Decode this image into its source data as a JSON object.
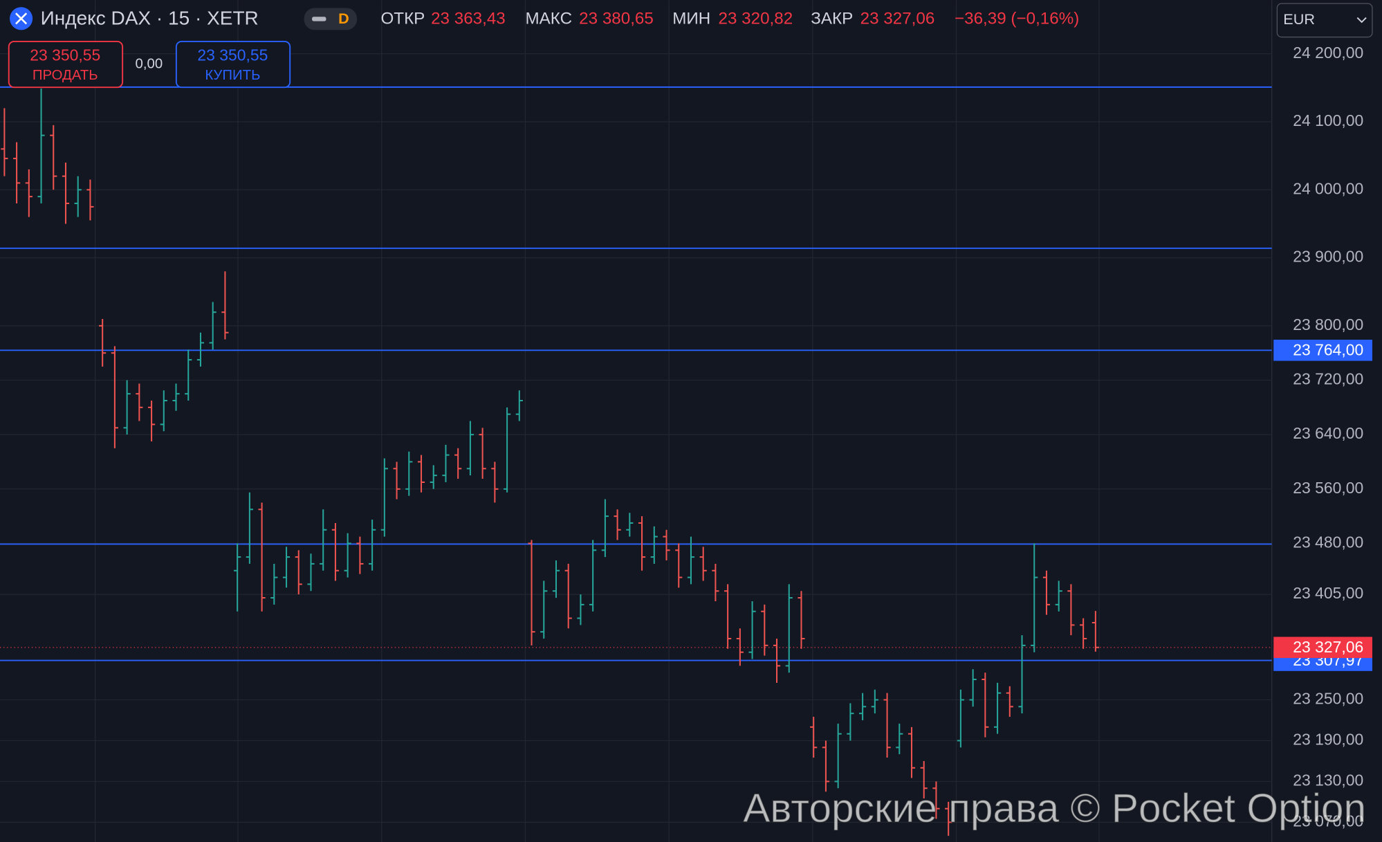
{
  "chart_data": {
    "type": "ohlc",
    "symbol": "Индекс DAX · 15 · XETR",
    "badge": "D",
    "stats": [
      {
        "name": "ОТКР",
        "value": "23 363,43"
      },
      {
        "name": "МАКС",
        "value": "23 380,65"
      },
      {
        "name": "МИН",
        "value": "23 320,82"
      },
      {
        "name": "ЗАКР",
        "value": "23 327,06"
      }
    ],
    "change": "−36,39 (−0,16%)",
    "sell": {
      "price": "23 350,55",
      "label": "ПРОДАТЬ"
    },
    "spread": "0,00",
    "buy": {
      "price": "23 350,55",
      "label": "КУПИТЬ"
    },
    "currency": "EUR",
    "watermark": "Авторские права © Pocket Option",
    "up_color": "#26a69a",
    "down_color": "#ef5350",
    "level_color": "#2962ff",
    "last_color": "#f23645",
    "grid": true,
    "ylim": [
      23041,
      24279
    ],
    "yticks": [
      {
        "value": 24200,
        "label": "24 200,00"
      },
      {
        "value": 24100,
        "label": "24 100,00"
      },
      {
        "value": 24000,
        "label": "24 000,00"
      },
      {
        "value": 23900,
        "label": "23 900,00"
      },
      {
        "value": 23800,
        "label": "23 800,00"
      },
      {
        "value": 23720,
        "label": "23 720,00"
      },
      {
        "value": 23640,
        "label": "23 640,00"
      },
      {
        "value": 23560,
        "label": "23 560,00"
      },
      {
        "value": 23480,
        "label": "23 480,00"
      },
      {
        "value": 23405,
        "label": "23 405,00"
      },
      {
        "value": 23250,
        "label": "23 250,00"
      },
      {
        "value": 23190,
        "label": "23 190,00"
      },
      {
        "value": 23130,
        "label": "23 130,00"
      },
      {
        "value": 23070,
        "label": "23 070,00"
      }
    ],
    "levels": [
      {
        "value": 24151
      },
      {
        "value": 23914
      },
      {
        "value": 23764,
        "label": "23 764,00"
      },
      {
        "value": 23479
      },
      {
        "value": 23307.97,
        "label": "23 307,97"
      }
    ],
    "last_price": {
      "value": 23327.06,
      "label": "23 327,06"
    },
    "ohlc": [
      [
        24060,
        24120,
        24020,
        24046
      ],
      [
        24046,
        24070,
        23980,
        24010
      ],
      [
        24010,
        24030,
        23960,
        23990
      ],
      [
        23990,
        24149,
        23980,
        24080
      ],
      [
        24080,
        24095,
        24000,
        24020
      ],
      [
        24020,
        24040,
        23950,
        23980
      ],
      [
        23980,
        24020,
        23960,
        24000
      ],
      [
        24000,
        24015,
        23955,
        23975
      ],
      [
        23800,
        23810,
        23740,
        23760
      ],
      [
        23760,
        23770,
        23620,
        23650
      ],
      [
        23650,
        23720,
        23640,
        23700
      ],
      [
        23700,
        23715,
        23660,
        23680
      ],
      [
        23680,
        23690,
        23630,
        23655
      ],
      [
        23655,
        23705,
        23645,
        23690
      ],
      [
        23690,
        23715,
        23675,
        23700
      ],
      [
        23700,
        23765,
        23690,
        23750
      ],
      [
        23750,
        23790,
        23740,
        23775
      ],
      [
        23775,
        23835,
        23765,
        23820
      ],
      [
        23820,
        23880,
        23780,
        23790
      ],
      [
        23440,
        23480,
        23380,
        23460
      ],
      [
        23460,
        23555,
        23450,
        23530
      ],
      [
        23530,
        23540,
        23380,
        23400
      ],
      [
        23400,
        23450,
        23390,
        23430
      ],
      [
        23430,
        23475,
        23415,
        23460
      ],
      [
        23460,
        23470,
        23405,
        23420
      ],
      [
        23420,
        23465,
        23410,
        23450
      ],
      [
        23450,
        23530,
        23440,
        23500
      ],
      [
        23500,
        23510,
        23425,
        23440
      ],
      [
        23440,
        23495,
        23430,
        23480
      ],
      [
        23480,
        23490,
        23435,
        23450
      ],
      [
        23450,
        23515,
        23440,
        23500
      ],
      [
        23500,
        23605,
        23490,
        23590
      ],
      [
        23590,
        23600,
        23545,
        23560
      ],
      [
        23560,
        23615,
        23550,
        23600
      ],
      [
        23600,
        23610,
        23555,
        23570
      ],
      [
        23570,
        23595,
        23560,
        23580
      ],
      [
        23580,
        23625,
        23570,
        23610
      ],
      [
        23610,
        23620,
        23575,
        23590
      ],
      [
        23590,
        23660,
        23580,
        23640
      ],
      [
        23640,
        23650,
        23575,
        23590
      ],
      [
        23590,
        23600,
        23540,
        23560
      ],
      [
        23560,
        23680,
        23555,
        23670
      ],
      [
        23670,
        23705,
        23660,
        23690
      ],
      [
        23480,
        23485,
        23330,
        23350
      ],
      [
        23350,
        23425,
        23340,
        23410
      ],
      [
        23410,
        23455,
        23400,
        23440
      ],
      [
        23440,
        23450,
        23355,
        23370
      ],
      [
        23370,
        23405,
        23360,
        23390
      ],
      [
        23390,
        23485,
        23380,
        23470
      ],
      [
        23470,
        23545,
        23460,
        23520
      ],
      [
        23520,
        23530,
        23485,
        23500
      ],
      [
        23500,
        23525,
        23490,
        23510
      ],
      [
        23510,
        23520,
        23440,
        23460
      ],
      [
        23460,
        23505,
        23450,
        23490
      ],
      [
        23490,
        23500,
        23455,
        23470
      ],
      [
        23470,
        23480,
        23415,
        23430
      ],
      [
        23430,
        23490,
        23420,
        23460
      ],
      [
        23460,
        23475,
        23425,
        23440
      ],
      [
        23440,
        23450,
        23395,
        23410
      ],
      [
        23410,
        23420,
        23325,
        23340
      ],
      [
        23340,
        23355,
        23300,
        23320
      ],
      [
        23320,
        23395,
        23310,
        23380
      ],
      [
        23380,
        23390,
        23315,
        23330
      ],
      [
        23330,
        23340,
        23275,
        23300
      ],
      [
        23300,
        23420,
        23290,
        23400
      ],
      [
        23400,
        23410,
        23325,
        23340
      ],
      [
        23210,
        23225,
        23165,
        23180
      ],
      [
        23180,
        23190,
        23115,
        23130
      ],
      [
        23130,
        23215,
        23120,
        23200
      ],
      [
        23200,
        23245,
        23190,
        23230
      ],
      [
        23230,
        23260,
        23220,
        23240
      ],
      [
        23240,
        23265,
        23230,
        23250
      ],
      [
        23250,
        23260,
        23165,
        23180
      ],
      [
        23180,
        23215,
        23170,
        23200
      ],
      [
        23200,
        23210,
        23135,
        23150
      ],
      [
        23150,
        23160,
        23105,
        23120
      ],
      [
        23120,
        23130,
        23075,
        23090
      ],
      [
        23090,
        23100,
        23050,
        23070
      ],
      [
        23190,
        23265,
        23180,
        23250
      ],
      [
        23250,
        23295,
        23240,
        23280
      ],
      [
        23280,
        23290,
        23195,
        23210
      ],
      [
        23210,
        23275,
        23200,
        23260
      ],
      [
        23260,
        23270,
        23225,
        23240
      ],
      [
        23240,
        23345,
        23230,
        23330
      ],
      [
        23330,
        23480,
        23320,
        23430
      ],
      [
        23430,
        23440,
        23375,
        23390
      ],
      [
        23390,
        23425,
        23380,
        23410
      ],
      [
        23410,
        23420,
        23345,
        23360
      ],
      [
        23360,
        23370,
        23325,
        23340
      ],
      [
        23363.43,
        23380.65,
        23320.82,
        23327.06
      ]
    ]
  }
}
